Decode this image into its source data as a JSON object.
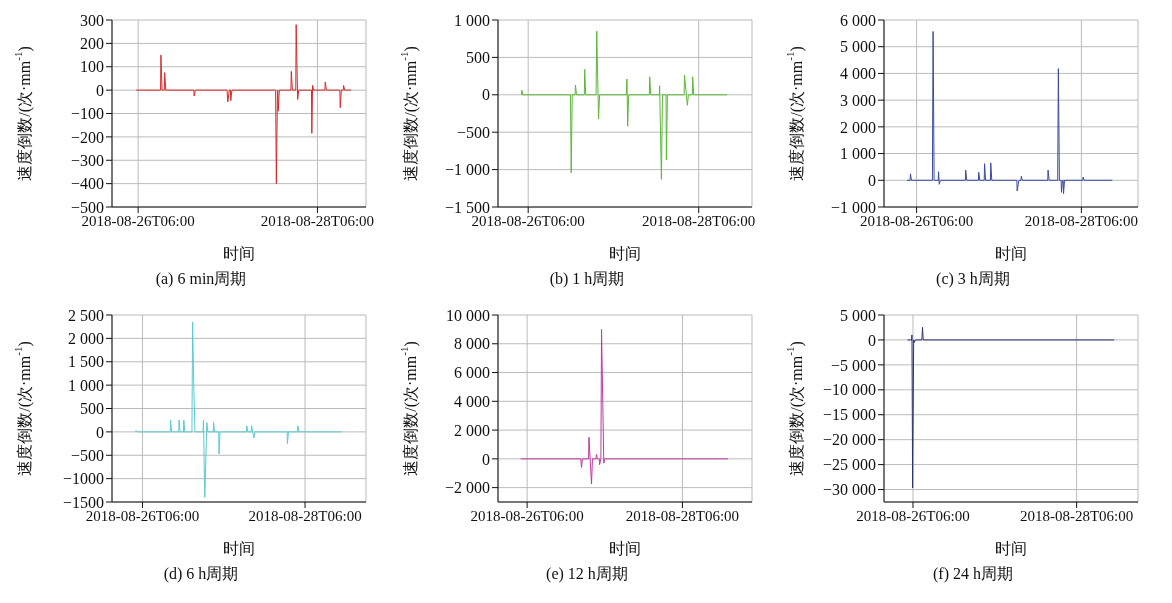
{
  "chart_data": [
    {
      "type": "line",
      "title": "(a) 6 min周期",
      "xlabel": "时间",
      "ylabel": "速度倒数/(次·mm$^{-1}$)",
      "grid": true,
      "xlim": [
        "2018-08-25T23:00",
        "2018-08-28T19:00"
      ],
      "xticks": [
        "2018-08-26T06:00",
        "2018-08-28T06:00"
      ],
      "ylim": [
        -500,
        300
      ],
      "yticks": [
        {
          "value": 300,
          "label": "300"
        },
        {
          "value": 200,
          "label": "200"
        },
        {
          "value": 100,
          "label": "100"
        },
        {
          "value": 0,
          "label": "0"
        },
        {
          "value": -100,
          "label": "−100"
        },
        {
          "value": -200,
          "label": "−200"
        },
        {
          "value": -300,
          "label": "−300"
        },
        {
          "value": -400,
          "label": "−400"
        },
        {
          "value": -500,
          "label": "−500"
        }
      ],
      "series": [
        {
          "color": "#d62a2a",
          "x": [
            "2018-08-26T05:30",
            "2018-08-26T12:00",
            "2018-08-26T12:06",
            "2018-08-26T12:24",
            "2018-08-26T13:00",
            "2018-08-26T13:06",
            "2018-08-26T13:24",
            "2018-08-26T20:54",
            "2018-08-26T21:00",
            "2018-08-26T21:18",
            "2018-08-27T05:48",
            "2018-08-27T06:00",
            "2018-08-27T06:24",
            "2018-08-27T06:42",
            "2018-08-27T06:48",
            "2018-08-27T07:06",
            "2018-08-27T18:48",
            "2018-08-27T19:00",
            "2018-08-27T19:18",
            "2018-08-27T19:24",
            "2018-08-27T19:30",
            "2018-08-27T19:48",
            "2018-08-27T22:54",
            "2018-08-27T23:00",
            "2018-08-27T23:18",
            "2018-08-28T00:12",
            "2018-08-28T00:18",
            "2018-08-28T00:42",
            "2018-08-28T01:00",
            "2018-08-28T04:24",
            "2018-08-28T04:30",
            "2018-08-28T04:42",
            "2018-08-28T05:00",
            "2018-08-28T08:00",
            "2018-08-28T08:06",
            "2018-08-28T08:24",
            "2018-08-28T12:00",
            "2018-08-28T12:06",
            "2018-08-28T12:24",
            "2018-08-28T12:54",
            "2018-08-28T13:00",
            "2018-08-28T13:18",
            "2018-08-28T15:00"
          ],
          "values": [
            0,
            0,
            150,
            0,
            0,
            75,
            0,
            0,
            -25,
            0,
            0,
            -50,
            0,
            0,
            -45,
            0,
            0,
            -400,
            0,
            0,
            -90,
            0,
            0,
            80,
            0,
            0,
            280,
            -40,
            0,
            0,
            -185,
            20,
            0,
            0,
            35,
            0,
            0,
            -75,
            0,
            0,
            20,
            0,
            0
          ]
        }
      ]
    },
    {
      "type": "line",
      "title": "(b) 1 h周期",
      "xlabel": "时间",
      "ylabel": "速度倒数/(次·mm$^{-1}$)",
      "grid": true,
      "xlim": [
        "2018-08-25T21:30",
        "2018-08-28T21:00"
      ],
      "xticks": [
        "2018-08-26T06:00",
        "2018-08-28T06:00"
      ],
      "ylim": [
        -1500,
        1000
      ],
      "yticks": [
        {
          "value": 1000,
          "label": "1 000"
        },
        {
          "value": 500,
          "label": "500"
        },
        {
          "value": 0,
          "label": "0"
        },
        {
          "value": -500,
          "label": "−500"
        },
        {
          "value": -1000,
          "label": "−1 000"
        },
        {
          "value": -1500,
          "label": "−1 500"
        }
      ],
      "series": [
        {
          "color": "#5cb83a",
          "x": [
            "2018-08-26T04:06",
            "2018-08-26T04:12",
            "2018-08-26T04:30",
            "2018-08-26T17:54",
            "2018-08-26T18:06",
            "2018-08-26T18:24",
            "2018-08-26T19:12",
            "2018-08-26T19:18",
            "2018-08-26T19:36",
            "2018-08-26T21:48",
            "2018-08-26T21:54",
            "2018-08-26T22:12",
            "2018-08-27T01:06",
            "2018-08-27T01:18",
            "2018-08-27T01:48",
            "2018-08-27T02:06",
            "2018-08-27T09:36",
            "2018-08-27T09:48",
            "2018-08-27T10:00",
            "2018-08-27T10:18",
            "2018-08-27T16:06",
            "2018-08-27T16:12",
            "2018-08-27T16:30",
            "2018-08-27T18:54",
            "2018-08-27T19:00",
            "2018-08-27T19:30",
            "2018-08-27T19:48",
            "2018-08-27T20:48",
            "2018-08-27T20:54",
            "2018-08-27T21:12",
            "2018-08-28T01:54",
            "2018-08-28T02:00",
            "2018-08-28T02:48",
            "2018-08-28T03:06",
            "2018-08-28T04:12",
            "2018-08-28T04:18",
            "2018-08-28T04:36",
            "2018-08-28T14:00"
          ],
          "values": [
            0,
            60,
            0,
            0,
            -1040,
            0,
            0,
            130,
            0,
            0,
            340,
            0,
            0,
            850,
            -320,
            0,
            0,
            210,
            -420,
            0,
            0,
            240,
            0,
            0,
            120,
            -1130,
            0,
            0,
            -870,
            0,
            0,
            260,
            -140,
            0,
            0,
            240,
            0,
            0
          ]
        }
      ]
    },
    {
      "type": "line",
      "title": "(c) 3 h周期",
      "xlabel": "时间",
      "ylabel": "速度倒数/(次·mm$^{-1}$)",
      "grid": true,
      "xlim": [
        "2018-08-25T20:30",
        "2018-08-28T22:30"
      ],
      "xticks": [
        "2018-08-26T06:00",
        "2018-08-28T06:00"
      ],
      "ylim": [
        -1000,
        6000
      ],
      "yticks": [
        {
          "value": 6000,
          "label": "6 000"
        },
        {
          "value": 5000,
          "label": "5 000"
        },
        {
          "value": 4000,
          "label": "4 000"
        },
        {
          "value": 3000,
          "label": "3 000"
        },
        {
          "value": 2000,
          "label": "2 000"
        },
        {
          "value": 1000,
          "label": "1 000"
        },
        {
          "value": 0,
          "label": "0"
        },
        {
          "value": -1000,
          "label": "−1 000"
        }
      ],
      "series": [
        {
          "color": "#3a4aa0",
          "x": [
            "2018-08-26T03:12",
            "2018-08-26T04:06",
            "2018-08-26T04:12",
            "2018-08-26T04:30",
            "2018-08-26T10:36",
            "2018-08-26T10:48",
            "2018-08-26T11:06",
            "2018-08-26T12:18",
            "2018-08-26T12:24",
            "2018-08-26T12:36",
            "2018-08-26T12:54",
            "2018-08-26T20:12",
            "2018-08-26T20:18",
            "2018-08-26T20:36",
            "2018-08-27T00:00",
            "2018-08-27T00:06",
            "2018-08-27T00:24",
            "2018-08-27T01:42",
            "2018-08-27T01:48",
            "2018-08-27T02:06",
            "2018-08-27T03:30",
            "2018-08-27T03:36",
            "2018-08-27T03:54",
            "2018-08-27T11:12",
            "2018-08-27T11:18",
            "2018-08-27T11:48",
            "2018-08-27T12:24",
            "2018-08-27T12:30",
            "2018-08-27T12:48",
            "2018-08-27T20:12",
            "2018-08-27T20:18",
            "2018-08-27T20:36",
            "2018-08-27T23:06",
            "2018-08-27T23:18",
            "2018-08-27T23:36",
            "2018-08-28T00:06",
            "2018-08-28T00:12",
            "2018-08-28T00:30",
            "2018-08-28T00:42",
            "2018-08-28T00:48",
            "2018-08-28T01:06",
            "2018-08-28T06:24",
            "2018-08-28T06:30",
            "2018-08-28T06:48",
            "2018-08-28T15:00"
          ],
          "values": [
            0,
            0,
            240,
            0,
            0,
            5570,
            0,
            0,
            320,
            -150,
            0,
            0,
            380,
            0,
            0,
            300,
            0,
            0,
            620,
            0,
            0,
            650,
            0,
            0,
            -400,
            0,
            0,
            150,
            0,
            0,
            380,
            0,
            0,
            4180,
            0,
            0,
            -450,
            0,
            0,
            -500,
            0,
            0,
            120,
            0,
            0
          ]
        }
      ]
    },
    {
      "type": "line",
      "title": "(d) 6 h周期",
      "xlabel": "时间",
      "ylabel": "速度倒数/(次·mm$^{-1}$)",
      "grid": true,
      "xlim": [
        "2018-08-25T21:00",
        "2018-08-29T00:00"
      ],
      "xticks": [
        "2018-08-26T06:00",
        "2018-08-28T06:00"
      ],
      "ylim": [
        -1500,
        2500
      ],
      "yticks": [
        {
          "value": 2500,
          "label": "2 500"
        },
        {
          "value": 2000,
          "label": "2 000"
        },
        {
          "value": 1500,
          "label": "1 500"
        },
        {
          "value": 1000,
          "label": "1 000"
        },
        {
          "value": 500,
          "label": "500"
        },
        {
          "value": 0,
          "label": "0"
        },
        {
          "value": -500,
          "label": "−500"
        },
        {
          "value": -1000,
          "label": "−1000"
        },
        {
          "value": -1500,
          "label": "−1500"
        }
      ],
      "series": [
        {
          "color": "#5ccbd0",
          "x": [
            "2018-08-26T04:00",
            "2018-08-26T04:06",
            "2018-08-26T04:30",
            "2018-08-26T14:12",
            "2018-08-26T14:18",
            "2018-08-26T14:36",
            "2018-08-26T16:42",
            "2018-08-26T16:48",
            "2018-08-26T17:06",
            "2018-08-26T18:06",
            "2018-08-26T18:12",
            "2018-08-26T18:30",
            "2018-08-26T20:36",
            "2018-08-26T20:48",
            "2018-08-26T21:12",
            "2018-08-26T21:30",
            "2018-08-26T23:54",
            "2018-08-27T00:00",
            "2018-08-27T00:24",
            "2018-08-27T01:00",
            "2018-08-27T01:18",
            "2018-08-27T02:54",
            "2018-08-27T03:00",
            "2018-08-27T03:18",
            "2018-08-27T04:30",
            "2018-08-27T04:36",
            "2018-08-27T04:54",
            "2018-08-27T12:42",
            "2018-08-27T12:48",
            "2018-08-27T13:06",
            "2018-08-27T14:06",
            "2018-08-27T14:12",
            "2018-08-27T14:54",
            "2018-08-27T15:12",
            "2018-08-28T00:42",
            "2018-08-28T00:48",
            "2018-08-28T01:06",
            "2018-08-28T03:48",
            "2018-08-28T03:54",
            "2018-08-28T04:12",
            "2018-08-28T16:48"
          ],
          "values": [
            0,
            30,
            0,
            0,
            250,
            0,
            0,
            250,
            0,
            0,
            250,
            0,
            0,
            2350,
            820,
            0,
            0,
            250,
            -1400,
            200,
            0,
            0,
            200,
            0,
            0,
            -470,
            0,
            0,
            130,
            0,
            0,
            130,
            -130,
            0,
            0,
            -250,
            0,
            0,
            130,
            0,
            0
          ]
        }
      ]
    },
    {
      "type": "line",
      "title": "(e) 12 h周期",
      "xlabel": "时间",
      "ylabel": "速度倒数/(次·mm$^{-1}$)",
      "grid": true,
      "xlim": [
        "2018-08-25T21:00",
        "2018-08-29T03:30"
      ],
      "xticks": [
        "2018-08-26T06:00",
        "2018-08-28T06:00"
      ],
      "ylim": [
        -3000,
        10000
      ],
      "yticks": [
        {
          "value": 10000,
          "label": "10 000"
        },
        {
          "value": 8000,
          "label": "8 000"
        },
        {
          "value": 6000,
          "label": "6 000"
        },
        {
          "value": 4000,
          "label": "4 000"
        },
        {
          "value": 2000,
          "label": "2 000"
        },
        {
          "value": 0,
          "label": "0"
        },
        {
          "value": -2000,
          "label": "−2 000"
        }
      ],
      "series": [
        {
          "color": "#c0399e",
          "x": [
            "2018-08-26T04:00",
            "2018-08-26T22:36",
            "2018-08-26T22:48",
            "2018-08-26T23:06",
            "2018-08-27T01:00",
            "2018-08-27T01:06",
            "2018-08-27T01:54",
            "2018-08-27T02:12",
            "2018-08-27T03:18",
            "2018-08-27T03:24",
            "2018-08-27T03:42",
            "2018-08-27T04:18",
            "2018-08-27T04:24",
            "2018-08-27T04:48",
            "2018-08-27T05:00",
            "2018-08-27T05:42",
            "2018-08-27T06:00",
            "2018-08-28T20:06"
          ],
          "values": [
            0,
            0,
            -600,
            0,
            0,
            1500,
            -1750,
            0,
            0,
            300,
            0,
            0,
            -400,
            0,
            9000,
            -300,
            0,
            0
          ]
        }
      ]
    },
    {
      "type": "line",
      "title": "(f) 24 h周期",
      "xlabel": "时间",
      "ylabel": "速度倒数/(次·mm$^{-1}$)",
      "grid": true,
      "xlim": [
        "2018-08-25T21:30",
        "2018-08-29T00:00"
      ],
      "xticks": [
        "2018-08-26T06:00",
        "2018-08-28T06:00"
      ],
      "ylim": [
        -32500,
        5000
      ],
      "yticks": [
        {
          "value": 5000,
          "label": "5 000"
        },
        {
          "value": 0,
          "label": "0"
        },
        {
          "value": -5000,
          "label": "−5 000"
        },
        {
          "value": -10000,
          "label": "−10 000"
        },
        {
          "value": -15000,
          "label": "−15 000"
        },
        {
          "value": -20000,
          "label": "−20 000"
        },
        {
          "value": -25000,
          "label": "−25 000"
        },
        {
          "value": -30000,
          "label": "−30 000"
        }
      ],
      "series": [
        {
          "color": "#2a3275",
          "x": [
            "2018-08-26T04:24",
            "2018-08-26T05:36",
            "2018-08-26T05:42",
            "2018-08-26T05:54",
            "2018-08-26T06:12",
            "2018-08-26T06:24",
            "2018-08-26T06:42",
            "2018-08-26T08:36",
            "2018-08-26T08:48",
            "2018-08-26T09:00",
            "2018-08-28T17:00"
          ],
          "values": [
            0,
            0,
            1000,
            -29700,
            0,
            -500,
            0,
            0,
            2500,
            0,
            0
          ]
        }
      ]
    }
  ]
}
